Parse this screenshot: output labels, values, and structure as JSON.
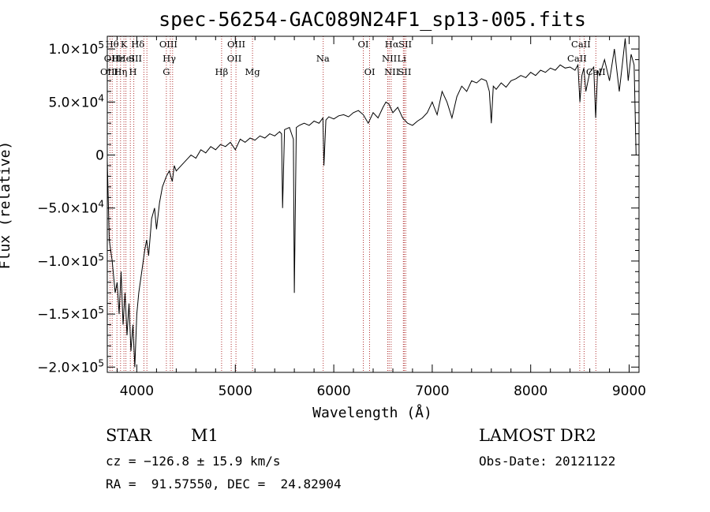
{
  "chart_data": {
    "type": "line",
    "title": "spec-56254-GAC089N24F1_sp13-005.fits",
    "xlabel": "Wavelength (Å)",
    "ylabel": "Flux (relative)",
    "xlim": [
      3700,
      9100
    ],
    "ylim": [
      -205000,
      112000
    ],
    "grid": false,
    "x_ticks": [
      {
        "value": 4000,
        "label": "4000"
      },
      {
        "value": 5000,
        "label": "5000"
      },
      {
        "value": 6000,
        "label": "6000"
      },
      {
        "value": 7000,
        "label": "7000"
      },
      {
        "value": 8000,
        "label": "8000"
      },
      {
        "value": 9000,
        "label": "9000"
      }
    ],
    "y_ticks": [
      {
        "value": 100000,
        "mant": "1.0×10",
        "exp": "5"
      },
      {
        "value": 50000,
        "mant": "5.0×10",
        "exp": "4"
      },
      {
        "value": 0,
        "mant": "0",
        "exp": ""
      },
      {
        "value": -50000,
        "mant": "−5.0×10",
        "exp": "4"
      },
      {
        "value": -100000,
        "mant": "−1.0×10",
        "exp": "5"
      },
      {
        "value": -150000,
        "mant": "−1.5×10",
        "exp": "5"
      },
      {
        "value": -200000,
        "mant": "−2.0×10",
        "exp": "5"
      }
    ],
    "series": [
      {
        "x": [
          3700,
          3720,
          3750,
          3780,
          3800,
          3820,
          3840,
          3860,
          3880,
          3900,
          3920,
          3940,
          3960,
          3980,
          4000,
          4020,
          4050,
          4080,
          4100,
          4120,
          4150,
          4180,
          4200,
          4230,
          4260,
          4300,
          4330,
          4360,
          4380,
          4400,
          4450,
          4500,
          4550,
          4600,
          4650,
          4700,
          4750,
          4800,
          4850,
          4900,
          4950,
          5000,
          5050,
          5100,
          5150,
          5200,
          5250,
          5300,
          5350,
          5400,
          5450,
          5470,
          5480,
          5500,
          5550,
          5590,
          5600,
          5620,
          5650,
          5700,
          5750,
          5800,
          5850,
          5890,
          5900,
          5920,
          5950,
          6000,
          6050,
          6100,
          6150,
          6200,
          6250,
          6300,
          6350,
          6400,
          6450,
          6500,
          6530,
          6560,
          6600,
          6650,
          6700,
          6750,
          6800,
          6850,
          6900,
          6950,
          7000,
          7020,
          7050,
          7100,
          7150,
          7200,
          7250,
          7300,
          7350,
          7400,
          7450,
          7500,
          7550,
          7580,
          7600,
          7620,
          7650,
          7700,
          7750,
          7800,
          7850,
          7900,
          7950,
          8000,
          8050,
          8100,
          8150,
          8200,
          8250,
          8300,
          8350,
          8400,
          8450,
          8480,
          8500,
          8520,
          8540,
          8560,
          8600,
          8640,
          8660,
          8680,
          8700,
          8750,
          8800,
          8850,
          8900,
          8930,
          8960,
          8990,
          9020,
          9050,
          9070
        ],
        "y": [
          -5000,
          -80000,
          -100000,
          -130000,
          -120000,
          -150000,
          -110000,
          -160000,
          -130000,
          -170000,
          -140000,
          -185000,
          -160000,
          -200000,
          -150000,
          -130000,
          -110000,
          -90000,
          -80000,
          -95000,
          -60000,
          -50000,
          -70000,
          -45000,
          -30000,
          -20000,
          -15000,
          -25000,
          -10000,
          -15000,
          -10000,
          -5000,
          0,
          -3000,
          5000,
          2000,
          8000,
          5000,
          10000,
          8000,
          12000,
          5000,
          15000,
          12000,
          16000,
          14000,
          18000,
          16000,
          20000,
          18000,
          22000,
          20000,
          -50000,
          24000,
          26000,
          15000,
          -130000,
          26000,
          28000,
          30000,
          28000,
          32000,
          30000,
          35000,
          -10000,
          33000,
          36000,
          34000,
          37000,
          38000,
          36000,
          40000,
          42000,
          38000,
          30000,
          40000,
          35000,
          45000,
          50000,
          48000,
          40000,
          45000,
          35000,
          30000,
          28000,
          32000,
          35000,
          40000,
          50000,
          45000,
          38000,
          60000,
          50000,
          35000,
          55000,
          65000,
          60000,
          70000,
          68000,
          72000,
          70000,
          60000,
          30000,
          65000,
          62000,
          68000,
          64000,
          70000,
          72000,
          75000,
          73000,
          78000,
          75000,
          80000,
          78000,
          82000,
          80000,
          85000,
          82000,
          83000,
          80000,
          85000,
          50000,
          75000,
          82000,
          60000,
          78000,
          83000,
          35000,
          80000,
          75000,
          90000,
          70000,
          100000,
          60000,
          85000,
          110000,
          70000,
          95000,
          85000,
          0
        ]
      }
    ],
    "line_labels": [
      {
        "x": 3750,
        "row": 0,
        "text": "Hθ"
      },
      {
        "x": 3870,
        "row": 0,
        "text": "K"
      },
      {
        "x": 4010,
        "row": 0,
        "text": "Hδ"
      },
      {
        "x": 4320,
        "row": 0,
        "text": "OIII"
      },
      {
        "x": 5010,
        "row": 0,
        "text": "OIII"
      },
      {
        "x": 6300,
        "row": 0,
        "text": "OI"
      },
      {
        "x": 6590,
        "row": 0,
        "text": "Hα"
      },
      {
        "x": 6725,
        "row": 0,
        "text": "SII"
      },
      {
        "x": 8510,
        "row": 0,
        "text": "CaII"
      },
      {
        "x": 3740,
        "row": 1,
        "text": "OII"
      },
      {
        "x": 3810,
        "row": 1,
        "text": "Hε"
      },
      {
        "x": 3895,
        "row": 1,
        "text": "HeI"
      },
      {
        "x": 3985,
        "row": 1,
        "text": "SII"
      },
      {
        "x": 4330,
        "row": 1,
        "text": "Hγ"
      },
      {
        "x": 4990,
        "row": 1,
        "text": "OII"
      },
      {
        "x": 5890,
        "row": 1,
        "text": "Na"
      },
      {
        "x": 6565,
        "row": 1,
        "text": "NII"
      },
      {
        "x": 6690,
        "row": 1,
        "text": "Li"
      },
      {
        "x": 8470,
        "row": 1,
        "text": "CaII"
      },
      {
        "x": 3720,
        "row": 2,
        "text": "OIII"
      },
      {
        "x": 3835,
        "row": 2,
        "text": "Hη"
      },
      {
        "x": 3960,
        "row": 2,
        "text": "H"
      },
      {
        "x": 4300,
        "row": 2,
        "text": "G"
      },
      {
        "x": 4861,
        "row": 2,
        "text": "Hβ"
      },
      {
        "x": 5175,
        "row": 2,
        "text": "Mg"
      },
      {
        "x": 6365,
        "row": 2,
        "text": "OI"
      },
      {
        "x": 6590,
        "row": 2,
        "text": "NII"
      },
      {
        "x": 6720,
        "row": 2,
        "text": "SII"
      },
      {
        "x": 8662,
        "row": 2,
        "text": "CaII"
      }
    ],
    "marker_lines": [
      3727,
      3750,
      3798,
      3835,
      3869,
      3889,
      3934,
      3969,
      4072,
      4102,
      4300,
      4340,
      4363,
      4861,
      4959,
      5007,
      5175,
      5893,
      6300,
      6364,
      6548,
      6563,
      6583,
      6707,
      6716,
      6731,
      8498,
      8542,
      8662
    ],
    "marker_color": "#b03030"
  },
  "info": {
    "object_class": "STAR",
    "subclass": "M1",
    "survey": "LAMOST DR2",
    "cz": "cz = −126.8 ± 15.9 km/s",
    "obs_date": "Obs-Date: 20121122",
    "coords": "RA =  91.57550, DEC =  24.82904"
  }
}
